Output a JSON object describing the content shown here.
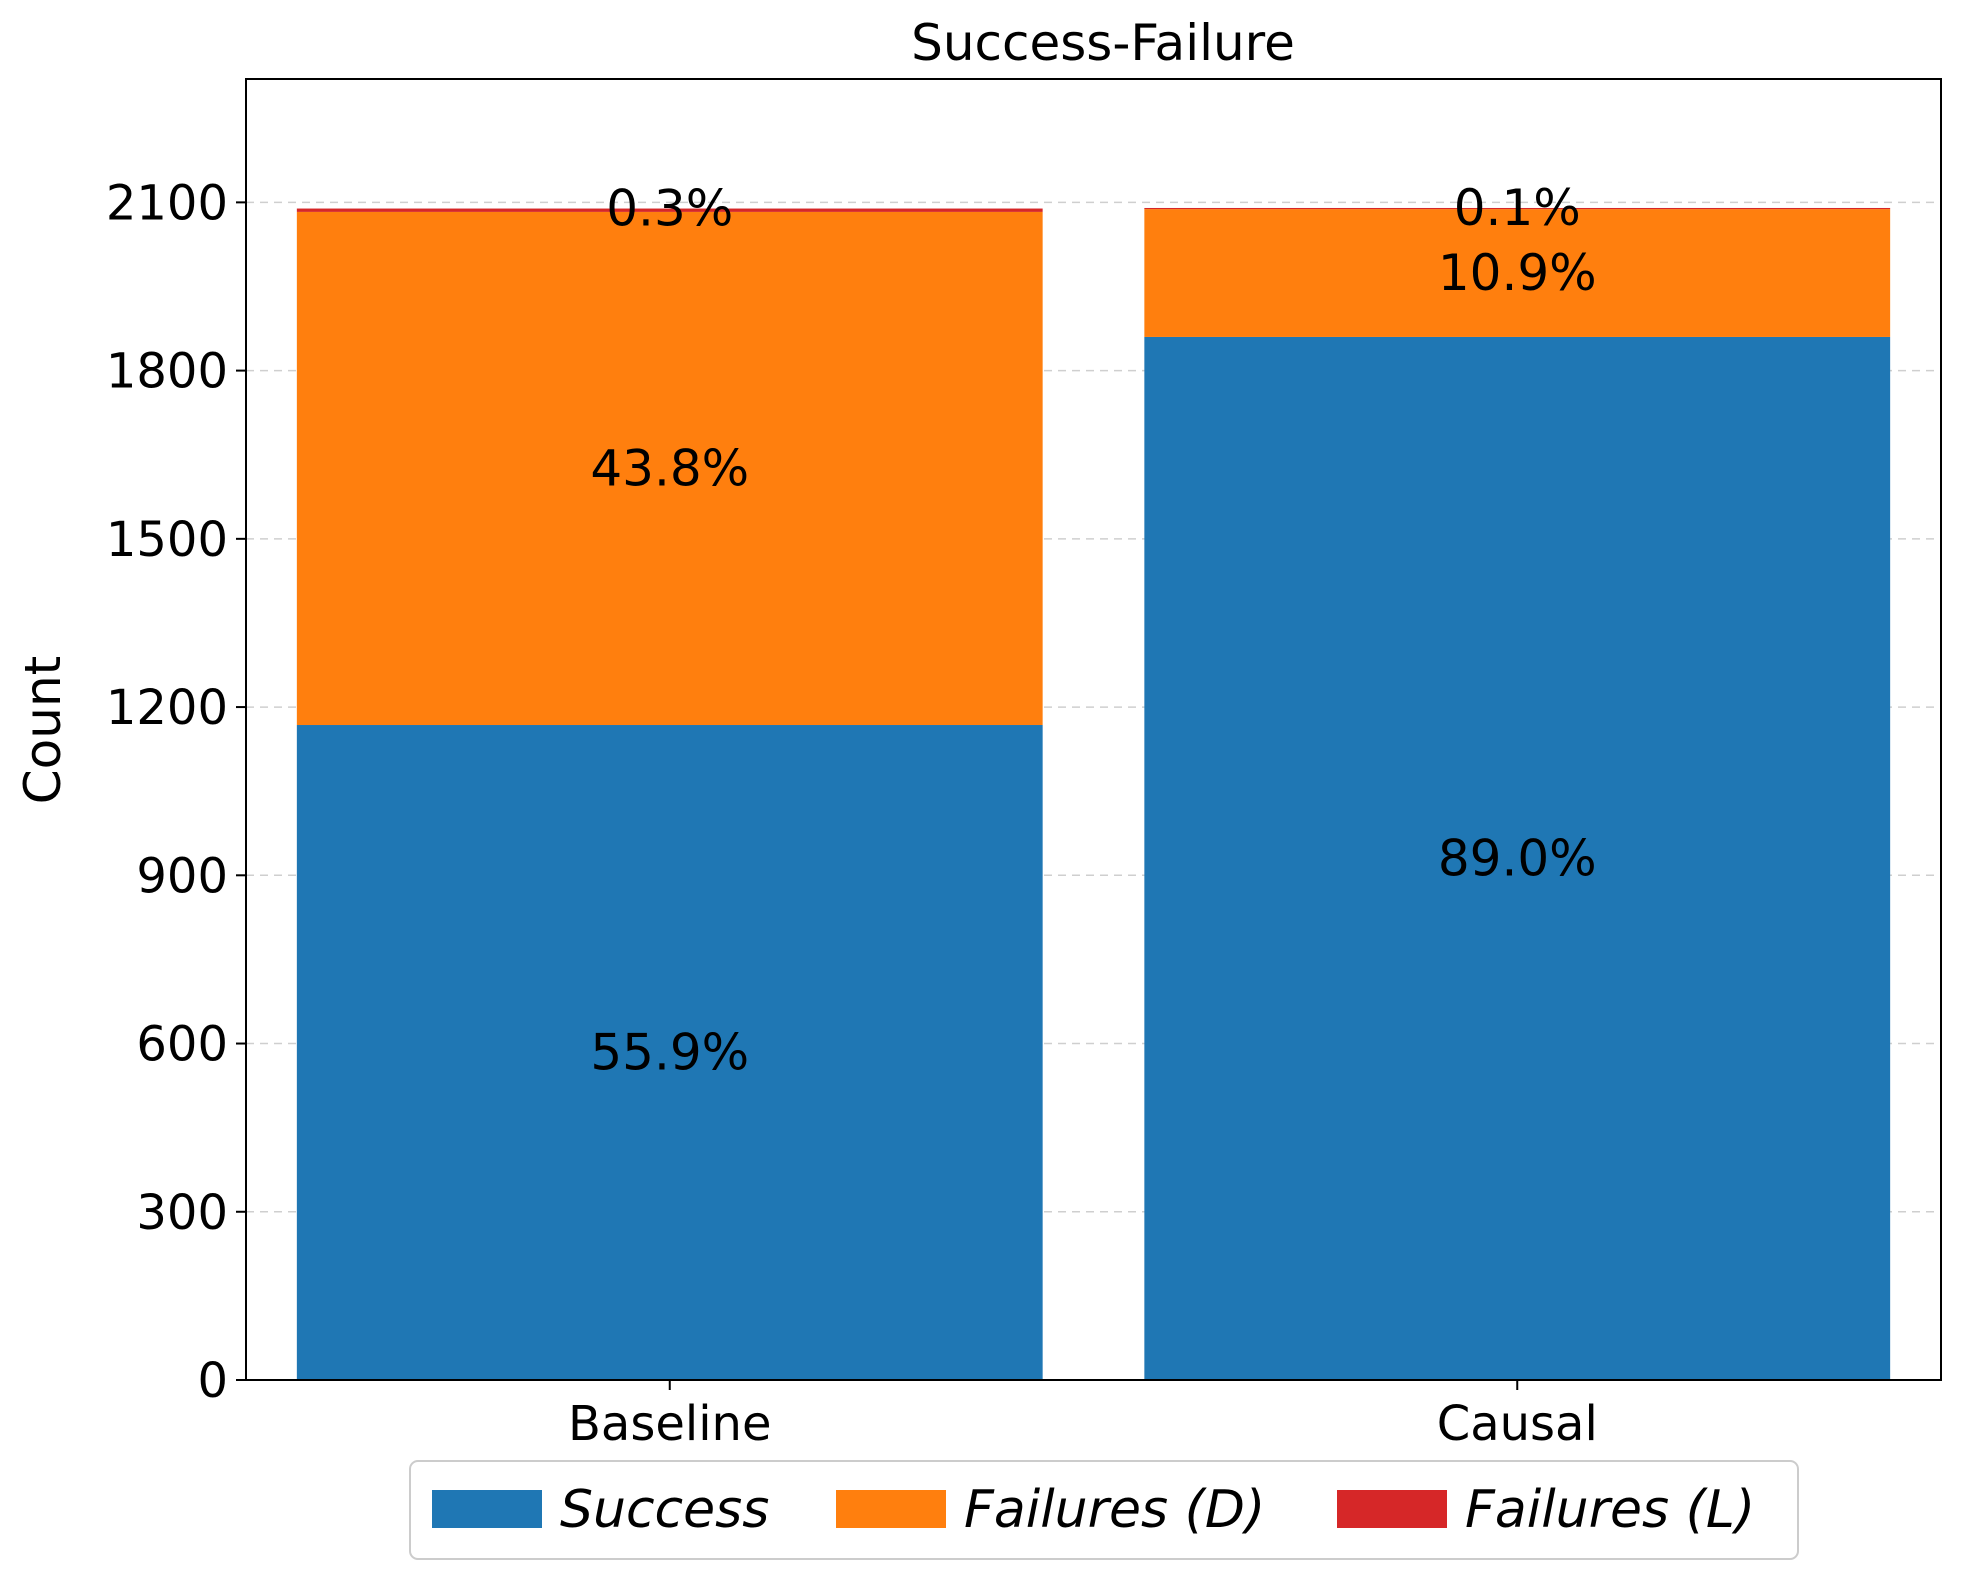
{
  "chart_data": {
    "type": "bar",
    "stacked": true,
    "title": "Success-Failure",
    "xlabel": "",
    "ylabel": "Count",
    "ylim": [
      0,
      2320
    ],
    "yticks": [
      0,
      300,
      600,
      900,
      1200,
      1500,
      1800,
      2100
    ],
    "grid": "y-dashed",
    "legend_position": "bottom-center",
    "categories": [
      "Baseline",
      "Causal"
    ],
    "series": [
      {
        "name": "Success",
        "color": "#1f77b4",
        "values": [
          1168,
          1860
        ],
        "labels": [
          "55.9%",
          "89.0%"
        ]
      },
      {
        "name": "Failures (D)",
        "color": "#ff7f0e",
        "values": [
          915,
          228
        ],
        "labels": [
          "43.8%",
          "10.9%"
        ]
      },
      {
        "name": "Failures (L)",
        "color": "#d62728",
        "values": [
          6,
          2
        ],
        "labels": [
          "0.3%",
          "0.1%"
        ]
      }
    ],
    "legend_labels": [
      {
        "text": "Success",
        "suffix": "",
        "suffix_italic": ""
      },
      {
        "text": "Failures (",
        "italic_part": "D",
        "close": ")"
      },
      {
        "text": "Failures (",
        "italic_part": "L",
        "close": ")"
      }
    ]
  }
}
